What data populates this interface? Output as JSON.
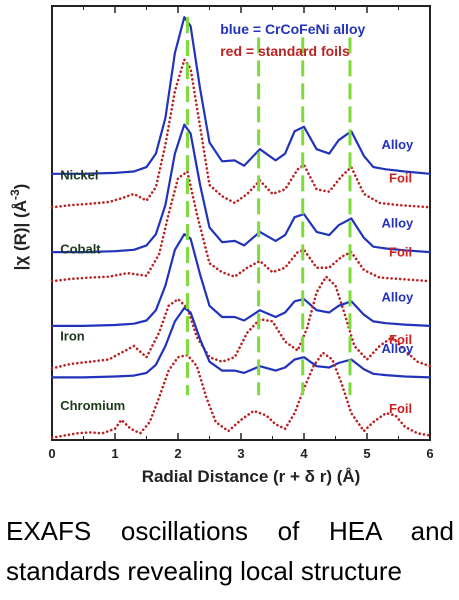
{
  "chart_data": {
    "type": "line",
    "xlabel": "Radial Distance (r + δ r) (Å)",
    "ylabel_parts": [
      "|χ (R)| (Å",
      "-3",
      ")"
    ],
    "xlim": [
      0,
      6
    ],
    "x_ticks": [
      "0",
      "1",
      "2",
      "3",
      "4",
      "5",
      "6"
    ],
    "grid": false,
    "colors": {
      "alloy": "#2233bb",
      "foil": "#bb2222",
      "guide": "#7ddb3a",
      "label_alloy": "#2233bb",
      "label_foil": "#cc2222"
    },
    "legend": {
      "position": "top-right",
      "blue_text": "blue = CrCoFeNi alloy",
      "red_text": "red = standard foils"
    },
    "guide_lines_x": [
      2.15,
      3.28,
      3.98,
      4.73
    ],
    "series": [
      {
        "element": "Nickel",
        "kind": "Alloy",
        "offset": 4.85,
        "x": [
          0,
          0.5,
          1,
          1.3,
          1.5,
          1.65,
          1.8,
          1.95,
          2.1,
          2.2,
          2.35,
          2.5,
          2.7,
          2.9,
          3.05,
          3.3,
          3.55,
          3.7,
          3.85,
          4.0,
          4.2,
          4.4,
          4.55,
          4.75,
          4.95,
          5.1,
          5.3,
          5.6,
          6
        ],
        "y": [
          0,
          0,
          0.02,
          0.05,
          0.15,
          0.45,
          1.25,
          2.7,
          3.5,
          3.3,
          1.9,
          0.7,
          0.28,
          0.3,
          0.18,
          0.55,
          0.3,
          0.45,
          0.95,
          1.05,
          0.55,
          0.45,
          0.75,
          0.95,
          0.4,
          0.15,
          0.1,
          0.05,
          0
        ]
      },
      {
        "element": "Nickel",
        "kind": "Foil",
        "offset": 4.1,
        "x": [
          0,
          0.3,
          0.6,
          0.9,
          1.1,
          1.3,
          1.5,
          1.65,
          1.8,
          1.95,
          2.1,
          2.2,
          2.35,
          2.5,
          2.7,
          2.9,
          3.1,
          3.3,
          3.5,
          3.7,
          3.9,
          4.0,
          4.2,
          4.4,
          4.6,
          4.75,
          4.95,
          5.2,
          5.5,
          6
        ],
        "y": [
          0,
          0.05,
          0.08,
          0.12,
          0.2,
          0.3,
          0.15,
          0.45,
          1.4,
          2.6,
          3.3,
          3.1,
          1.8,
          0.5,
          0.25,
          0.1,
          0.3,
          0.6,
          0.3,
          0.4,
          0.85,
          0.95,
          0.4,
          0.35,
          0.7,
          0.9,
          0.3,
          0.1,
          0.05,
          0
        ]
      },
      {
        "element": "Cobalt",
        "kind": "Alloy",
        "offset": 3.1,
        "x": [
          0,
          0.5,
          1,
          1.3,
          1.5,
          1.65,
          1.8,
          1.95,
          2.1,
          2.2,
          2.35,
          2.5,
          2.7,
          2.9,
          3.05,
          3.3,
          3.55,
          3.7,
          3.85,
          4.0,
          4.2,
          4.4,
          4.55,
          4.75,
          4.95,
          5.1,
          5.3,
          5.6,
          6
        ],
        "y": [
          0,
          0,
          0.02,
          0.05,
          0.15,
          0.4,
          1.05,
          2.2,
          2.85,
          2.65,
          1.5,
          0.55,
          0.22,
          0.25,
          0.15,
          0.45,
          0.25,
          0.38,
          0.78,
          0.85,
          0.45,
          0.38,
          0.6,
          0.75,
          0.32,
          0.12,
          0.08,
          0.04,
          0
        ]
      },
      {
        "element": "Cobalt",
        "kind": "Foil",
        "offset": 2.45,
        "x": [
          0,
          0.3,
          0.6,
          0.9,
          1.2,
          1.5,
          1.7,
          1.85,
          2.0,
          2.15,
          2.3,
          2.5,
          2.7,
          2.9,
          3.1,
          3.3,
          3.5,
          3.7,
          3.9,
          4.0,
          4.2,
          4.4,
          4.6,
          4.75,
          4.95,
          5.2,
          5.5,
          6
        ],
        "y": [
          0,
          0.05,
          0.08,
          0.1,
          0.18,
          0.12,
          0.6,
          1.5,
          2.3,
          2.45,
          1.5,
          0.4,
          0.2,
          0.1,
          0.3,
          0.45,
          0.2,
          0.3,
          0.65,
          0.7,
          0.3,
          0.3,
          0.55,
          0.65,
          0.25,
          0.08,
          0.05,
          0
        ]
      },
      {
        "element": "Iron",
        "kind": "Alloy",
        "offset": 1.45,
        "x": [
          0,
          0.5,
          1,
          1.3,
          1.5,
          1.65,
          1.8,
          1.95,
          2.1,
          2.2,
          2.35,
          2.5,
          2.7,
          2.9,
          3.05,
          3.3,
          3.55,
          3.7,
          3.85,
          4.0,
          4.2,
          4.4,
          4.55,
          4.75,
          4.95,
          5.1,
          5.3,
          5.6,
          6
        ],
        "y": [
          0,
          0,
          0.02,
          0.05,
          0.12,
          0.35,
          0.9,
          1.7,
          2.05,
          1.95,
          1.15,
          0.45,
          0.2,
          0.2,
          0.12,
          0.35,
          0.2,
          0.3,
          0.55,
          0.6,
          0.35,
          0.3,
          0.45,
          0.55,
          0.25,
          0.1,
          0.06,
          0.03,
          0
        ]
      },
      {
        "element": "Iron",
        "kind": "Foil",
        "offset": 0.5,
        "x": [
          0,
          0.3,
          0.6,
          0.9,
          1.1,
          1.3,
          1.5,
          1.7,
          1.85,
          2.0,
          2.15,
          2.3,
          2.5,
          2.7,
          2.9,
          3.1,
          3.3,
          3.5,
          3.7,
          3.9,
          4.05,
          4.2,
          4.35,
          4.5,
          4.65,
          4.8,
          5.0,
          5.2,
          5.4,
          5.6,
          5.8,
          6
        ],
        "y": [
          0,
          0.1,
          0.15,
          0.2,
          0.35,
          0.5,
          0.25,
          0.8,
          1.4,
          1.55,
          1.35,
          0.7,
          0.25,
          0.15,
          0.25,
          0.8,
          1.1,
          1.05,
          0.6,
          0.4,
          0.9,
          1.7,
          2.05,
          1.85,
          1.2,
          0.5,
          0.2,
          0.5,
          0.7,
          0.4,
          0.15,
          0.05
        ]
      },
      {
        "element": "Chromium",
        "kind": "Alloy",
        "offset": 0.3,
        "x": [
          0,
          0.5,
          1,
          1.3,
          1.5,
          1.65,
          1.8,
          1.95,
          2.1,
          2.2,
          2.35,
          2.5,
          2.7,
          2.9,
          3.05,
          3.3,
          3.55,
          3.7,
          3.85,
          4.0,
          4.2,
          4.4,
          4.55,
          4.75,
          4.95,
          5.1,
          5.3,
          5.6,
          6
        ],
        "y": [
          0,
          0,
          0.02,
          0.04,
          0.1,
          0.28,
          0.7,
          1.25,
          1.55,
          1.45,
          0.85,
          0.35,
          0.15,
          0.15,
          0.1,
          0.25,
          0.15,
          0.22,
          0.4,
          0.45,
          0.25,
          0.22,
          0.32,
          0.4,
          0.18,
          0.08,
          0.05,
          0.02,
          0
        ]
      },
      {
        "element": "Chromium",
        "kind": "Foil",
        "offset": -1.05,
        "x": [
          0,
          0.2,
          0.4,
          0.6,
          0.8,
          1.0,
          1.1,
          1.25,
          1.4,
          1.55,
          1.7,
          1.85,
          2.0,
          2.15,
          2.3,
          2.45,
          2.6,
          2.8,
          3.0,
          3.2,
          3.4,
          3.55,
          3.7,
          3.85,
          4.0,
          4.15,
          4.3,
          4.45,
          4.6,
          4.75,
          4.95,
          5.1,
          5.3,
          5.45,
          5.6,
          5.8,
          6
        ],
        "y": [
          0,
          0.05,
          0.1,
          0.12,
          0.1,
          0.2,
          0.4,
          0.2,
          0.1,
          0.35,
          0.9,
          1.5,
          1.8,
          1.85,
          1.6,
          0.9,
          0.35,
          0.15,
          0.4,
          0.6,
          0.5,
          0.3,
          0.2,
          0.55,
          1.1,
          1.6,
          1.9,
          1.75,
          1.2,
          0.55,
          0.15,
          0.35,
          0.55,
          0.5,
          0.25,
          0.1,
          0.05
        ]
      }
    ],
    "element_labels": [
      {
        "text": "Nickel",
        "series_index": 1
      },
      {
        "text": "Cobalt",
        "series_index": 3
      },
      {
        "text": "Iron",
        "series_index": 5
      },
      {
        "text": "Chromium",
        "series_index": 7
      }
    ],
    "trace_labels": [
      {
        "text": "Alloy",
        "series_index": 0
      },
      {
        "text": "Foil",
        "series_index": 1
      },
      {
        "text": "Alloy",
        "series_index": 2
      },
      {
        "text": "Foil",
        "series_index": 3
      },
      {
        "text": "Alloy",
        "series_index": 4
      },
      {
        "text": "Foil",
        "series_index": 5
      },
      {
        "text": "Alloy",
        "series_index": 6
      },
      {
        "text": "Foil",
        "series_index": 7
      }
    ]
  },
  "caption": {
    "line1": "EXAFS oscillations of HEA and",
    "line2": "standards revealing local structure"
  }
}
